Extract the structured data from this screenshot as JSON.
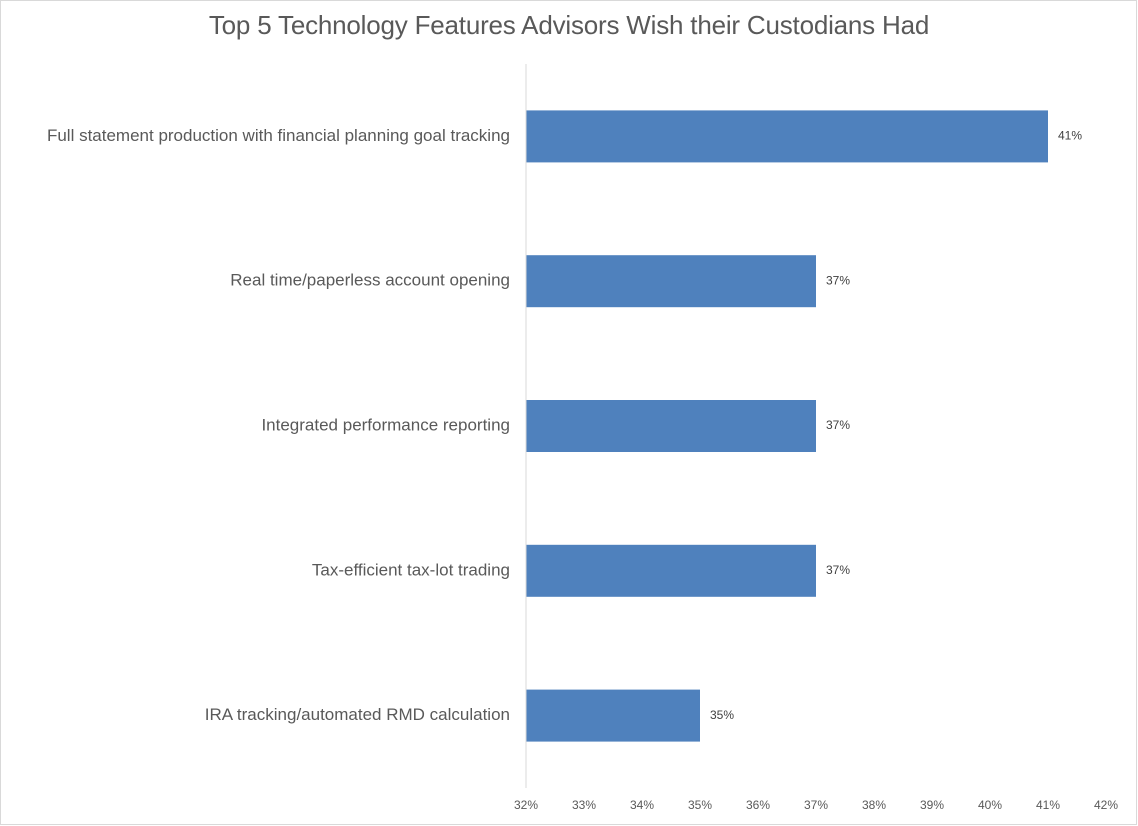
{
  "chart_data": {
    "type": "bar",
    "orientation": "horizontal",
    "title": "Top 5 Technology Features Advisors Wish their Custodians Had",
    "categories": [
      "Full statement production with financial planning goal tracking",
      "Real time/paperless account opening",
      "Integrated performance reporting",
      "Tax-efficient tax-lot trading",
      "IRA tracking/automated RMD calculation"
    ],
    "values": [
      41,
      37,
      37,
      37,
      35
    ],
    "data_labels": [
      "41%",
      "37%",
      "37%",
      "37%",
      "35%"
    ],
    "xlim": [
      32,
      42
    ],
    "x_ticks": [
      32,
      33,
      34,
      35,
      36,
      37,
      38,
      39,
      40,
      41,
      42
    ],
    "x_tick_labels": [
      "32%",
      "33%",
      "34%",
      "35%",
      "36%",
      "37%",
      "38%",
      "39%",
      "40%",
      "41%",
      "42%"
    ],
    "xlabel": "",
    "ylabel": "",
    "grid": false,
    "legend": "none",
    "bar_color": "#4f81bd",
    "text_color": "#595959",
    "axis_color": "#d9d9d9"
  }
}
